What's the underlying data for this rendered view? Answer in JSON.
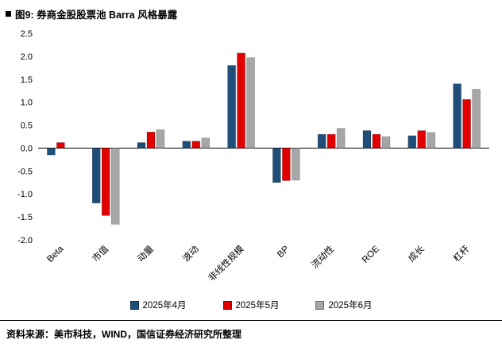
{
  "figure": {
    "title": "图9: 券商金股股票池 Barra 风格暴露",
    "source": "资料来源：美市科技，WIND，国信证券经济研究所整理"
  },
  "chart_data": {
    "type": "bar",
    "title": "券商金股股票池 Barra 风格暴露",
    "categories": [
      "Beta",
      "市值",
      "动量",
      "波动",
      "非线性规模",
      "BP",
      "流动性",
      "ROE",
      "成长",
      "杠杆"
    ],
    "series": [
      {
        "name": "2025年4月",
        "color": "#1F4E79",
        "values": [
          -0.15,
          -1.2,
          0.12,
          0.15,
          1.8,
          -0.75,
          0.3,
          0.38,
          0.27,
          1.4
        ]
      },
      {
        "name": "2025年5月",
        "color": "#E00000",
        "values": [
          0.12,
          -1.47,
          0.35,
          0.15,
          2.07,
          -0.71,
          0.3,
          0.3,
          0.38,
          1.06
        ]
      },
      {
        "name": "2025年6月",
        "color": "#A6A6A6",
        "values": [
          0.0,
          -1.66,
          0.4,
          0.22,
          1.97,
          -0.7,
          0.43,
          0.25,
          0.34,
          1.28
        ]
      }
    ],
    "xlabel": "",
    "ylabel": "",
    "ylim": [
      -2.0,
      2.5
    ],
    "ytick_step": 0.5,
    "grid": false,
    "legend_position": "bottom"
  }
}
